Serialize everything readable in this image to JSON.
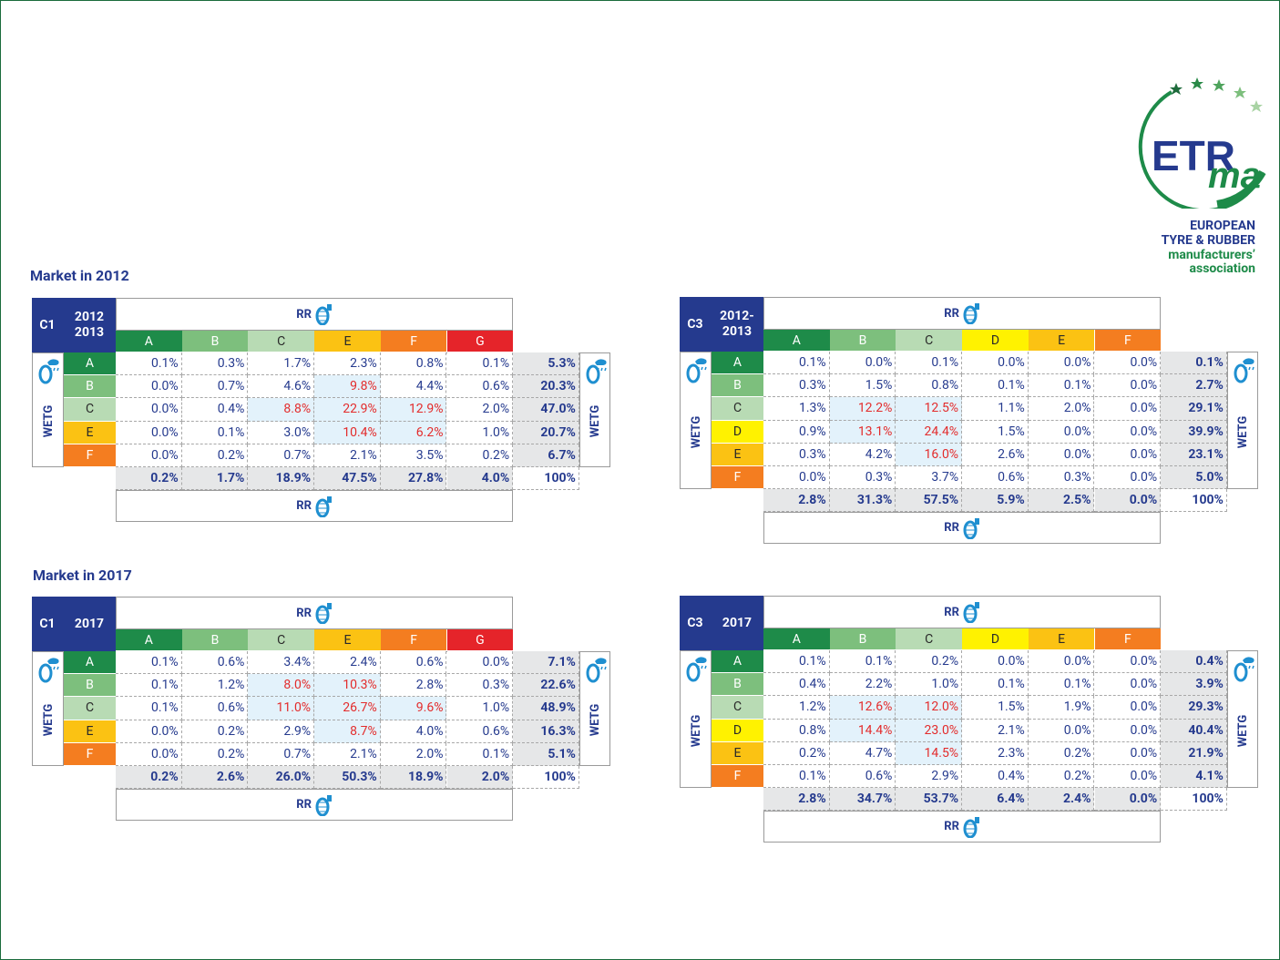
{
  "logo": {
    "acronym_top": "ETR",
    "acronym_bottom": "ma",
    "name": [
      "EUROPEAN",
      "TYRE & RUBBER",
      "manufacturers’",
      "association"
    ]
  },
  "sections": [
    {
      "title": "Market in 2012"
    },
    {
      "title": "Market in 2017"
    }
  ],
  "palette": {
    "A": {
      "fill": "#1e8b49",
      "text": "#ffffff"
    },
    "B": {
      "fill": "#7dbf7d",
      "text": "#ffffff"
    },
    "C": {
      "fill": "#b8dbb4",
      "text": "#2a2a2a"
    },
    "D": {
      "fill": "#fff200",
      "text": "#2a2a2a"
    },
    "E": {
      "fill": "#fbc213",
      "text": "#2a2a2a"
    },
    "F": {
      "fill": "#f47d20",
      "text": "#ffffff"
    },
    "G": {
      "fill": "#e5242a",
      "text": "#ffffff"
    }
  },
  "tables": [
    {
      "segment": "C1",
      "period": [
        "2012",
        "2013"
      ],
      "rr_label": "RR",
      "wetg_label": "WETG",
      "columns": [
        "A",
        "B",
        "C",
        "E",
        "F",
        "G"
      ],
      "rows": [
        {
          "label": "A",
          "cells": [
            "0.1%",
            "0.3%",
            "1.7%",
            "2.3%",
            "0.8%",
            "0.1%"
          ],
          "total": "5.3%"
        },
        {
          "label": "B",
          "cells": [
            "0.0%",
            "0.7%",
            "4.6%",
            "9.8%",
            "4.4%",
            "0.6%"
          ],
          "total": "20.3%"
        },
        {
          "label": "C",
          "cells": [
            "0.0%",
            "0.4%",
            "8.8%",
            "22.9%",
            "12.9%",
            "2.0%"
          ],
          "total": "47.0%"
        },
        {
          "label": "E",
          "cells": [
            "0.0%",
            "0.1%",
            "3.0%",
            "10.4%",
            "6.2%",
            "1.0%"
          ],
          "total": "20.7%"
        },
        {
          "label": "F",
          "cells": [
            "0.0%",
            "0.2%",
            "0.7%",
            "2.1%",
            "3.5%",
            "0.2%"
          ],
          "total": "6.7%"
        }
      ],
      "column_totals": [
        "0.2%",
        "1.7%",
        "18.9%",
        "47.5%",
        "27.8%",
        "4.0%"
      ],
      "grand_total": "100%",
      "highlight": [
        [
          1,
          3
        ],
        [
          2,
          2
        ],
        [
          2,
          3
        ],
        [
          2,
          4
        ],
        [
          3,
          3
        ],
        [
          3,
          4
        ]
      ]
    },
    {
      "segment": "C3",
      "period": [
        "2012-",
        "2013"
      ],
      "rr_label": "RR",
      "wetg_label": "WETG",
      "columns": [
        "A",
        "B",
        "C",
        "D",
        "E",
        "F"
      ],
      "rows": [
        {
          "label": "A",
          "cells": [
            "0.1%",
            "0.0%",
            "0.1%",
            "0.0%",
            "0.0%",
            "0.0%"
          ],
          "total": "0.1%"
        },
        {
          "label": "B",
          "cells": [
            "0.3%",
            "1.5%",
            "0.8%",
            "0.1%",
            "0.1%",
            "0.0%"
          ],
          "total": "2.7%"
        },
        {
          "label": "C",
          "cells": [
            "1.3%",
            "12.2%",
            "12.5%",
            "1.1%",
            "2.0%",
            "0.0%"
          ],
          "total": "29.1%"
        },
        {
          "label": "D",
          "cells": [
            "0.9%",
            "13.1%",
            "24.4%",
            "1.5%",
            "0.0%",
            "0.0%"
          ],
          "total": "39.9%"
        },
        {
          "label": "E",
          "cells": [
            "0.3%",
            "4.2%",
            "16.0%",
            "2.6%",
            "0.0%",
            "0.0%"
          ],
          "total": "23.1%"
        },
        {
          "label": "F",
          "cells": [
            "0.0%",
            "0.3%",
            "3.7%",
            "0.6%",
            "0.3%",
            "0.0%"
          ],
          "total": "5.0%"
        }
      ],
      "column_totals": [
        "2.8%",
        "31.3%",
        "57.5%",
        "5.9%",
        "2.5%",
        "0.0%"
      ],
      "grand_total": "100%",
      "highlight": [
        [
          2,
          1
        ],
        [
          2,
          2
        ],
        [
          3,
          1
        ],
        [
          3,
          2
        ],
        [
          4,
          2
        ]
      ]
    },
    {
      "segment": "C1",
      "period": [
        "2017"
      ],
      "rr_label": "RR",
      "wetg_label": "WETG",
      "columns": [
        "A",
        "B",
        "C",
        "E",
        "F",
        "G"
      ],
      "rows": [
        {
          "label": "A",
          "cells": [
            "0.1%",
            "0.6%",
            "3.4%",
            "2.4%",
            "0.6%",
            "0.0%"
          ],
          "total": "7.1%"
        },
        {
          "label": "B",
          "cells": [
            "0.1%",
            "1.2%",
            "8.0%",
            "10.3%",
            "2.8%",
            "0.3%"
          ],
          "total": "22.6%"
        },
        {
          "label": "C",
          "cells": [
            "0.1%",
            "0.6%",
            "11.0%",
            "26.7%",
            "9.6%",
            "1.0%"
          ],
          "total": "48.9%"
        },
        {
          "label": "E",
          "cells": [
            "0.0%",
            "0.2%",
            "2.9%",
            "8.7%",
            "4.0%",
            "0.6%"
          ],
          "total": "16.3%"
        },
        {
          "label": "F",
          "cells": [
            "0.0%",
            "0.2%",
            "0.7%",
            "2.1%",
            "2.0%",
            "0.1%"
          ],
          "total": "5.1%"
        }
      ],
      "column_totals": [
        "0.2%",
        "2.6%",
        "26.0%",
        "50.3%",
        "18.9%",
        "2.0%"
      ],
      "grand_total": "100%",
      "highlight": [
        [
          1,
          2
        ],
        [
          1,
          3
        ],
        [
          2,
          2
        ],
        [
          2,
          3
        ],
        [
          2,
          4
        ],
        [
          3,
          3
        ]
      ]
    },
    {
      "segment": "C3",
      "period": [
        "2017"
      ],
      "rr_label": "RR",
      "wetg_label": "WETG",
      "columns": [
        "A",
        "B",
        "C",
        "D",
        "E",
        "F"
      ],
      "rows": [
        {
          "label": "A",
          "cells": [
            "0.1%",
            "0.1%",
            "0.2%",
            "0.0%",
            "0.0%",
            "0.0%"
          ],
          "total": "0.4%"
        },
        {
          "label": "B",
          "cells": [
            "0.4%",
            "2.2%",
            "1.0%",
            "0.1%",
            "0.1%",
            "0.0%"
          ],
          "total": "3.9%"
        },
        {
          "label": "C",
          "cells": [
            "1.2%",
            "12.6%",
            "12.0%",
            "1.5%",
            "1.9%",
            "0.0%"
          ],
          "total": "29.3%"
        },
        {
          "label": "D",
          "cells": [
            "0.8%",
            "14.4%",
            "23.0%",
            "2.1%",
            "0.0%",
            "0.0%"
          ],
          "total": "40.4%"
        },
        {
          "label": "E",
          "cells": [
            "0.2%",
            "4.7%",
            "14.5%",
            "2.3%",
            "0.2%",
            "0.0%"
          ],
          "total": "21.9%"
        },
        {
          "label": "F",
          "cells": [
            "0.1%",
            "0.6%",
            "2.9%",
            "0.4%",
            "0.2%",
            "0.0%"
          ],
          "total": "4.1%"
        }
      ],
      "column_totals": [
        "2.8%",
        "34.7%",
        "53.7%",
        "6.4%",
        "2.4%",
        "0.0%"
      ],
      "grand_total": "100%",
      "highlight": [
        [
          2,
          1
        ],
        [
          2,
          2
        ],
        [
          3,
          1
        ],
        [
          3,
          2
        ],
        [
          4,
          2
        ]
      ]
    }
  ]
}
